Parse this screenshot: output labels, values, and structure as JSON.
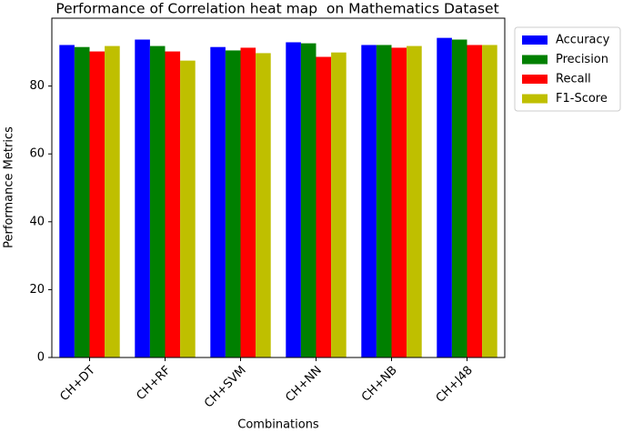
{
  "chart_data": {
    "type": "bar",
    "title": "Performance of Correlation heat map  on Mathematics Dataset",
    "x_label": "Combinations",
    "y_label": "Performance Metrics",
    "categories": [
      "CH+DT",
      "CH+RF",
      "CH+SVM",
      "CH+NN",
      "CH+NB",
      "CH+J48"
    ],
    "series": [
      {
        "name": "Accuracy",
        "color": "#0000ff",
        "values": [
          92.1,
          93.7,
          91.5,
          92.9,
          92.1,
          94.2
        ]
      },
      {
        "name": "Precision",
        "color": "#008000",
        "values": [
          91.5,
          91.8,
          90.5,
          92.6,
          92.1,
          93.7
        ]
      },
      {
        "name": "Recall",
        "color": "#ff0000",
        "values": [
          90.2,
          90.2,
          91.3,
          88.6,
          91.3,
          92.1
        ]
      },
      {
        "name": "F1-Score",
        "color": "#bfbf00",
        "values": [
          91.8,
          87.5,
          89.7,
          89.9,
          91.8,
          92.1
        ]
      }
    ],
    "ylim": [
      0,
      100
    ],
    "yticks": [
      0,
      20,
      40,
      60,
      80
    ],
    "grid": false,
    "legend": "outside-upper-right"
  }
}
